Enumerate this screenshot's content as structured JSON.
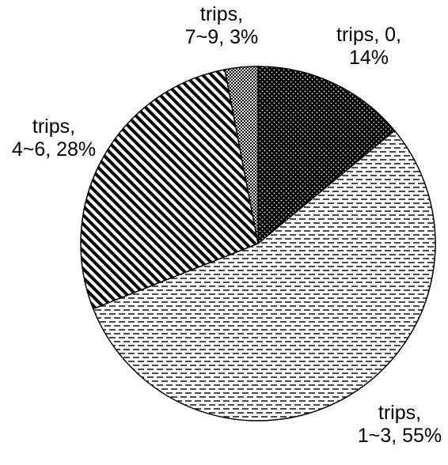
{
  "chart_data": {
    "type": "pie",
    "title": "",
    "slices": [
      {
        "label": "trips, 0",
        "value": 14,
        "display_lines": [
          "trips, 0,",
          "14%"
        ],
        "pattern": "dots-dark"
      },
      {
        "label": "trips, 1~3",
        "value": 55,
        "display_lines": [
          "trips,",
          "1~3, 55%"
        ],
        "pattern": "dashes-horizontal"
      },
      {
        "label": "trips, 4~6",
        "value": 28,
        "display_lines": [
          "trips,",
          "4~6, 28%"
        ],
        "pattern": "diagonal-stripes"
      },
      {
        "label": "trips, 7~9",
        "value": 3,
        "display_lines": [
          "trips,",
          "7~9, 3%"
        ],
        "pattern": "checkerboard"
      }
    ],
    "start_angle_deg": 0,
    "direction": "clockwise",
    "colors": {
      "stroke": "#000000",
      "background": "#ffffff",
      "pattern_ink": "#000000"
    }
  }
}
